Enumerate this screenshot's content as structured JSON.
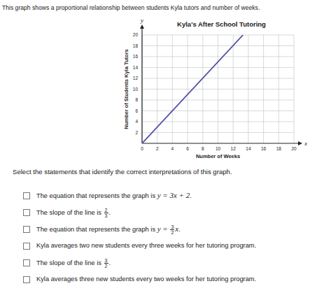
{
  "intro": "This graph shows a proportional relationship between students Kyla tutors and number of weeks.",
  "chart_data": {
    "type": "line",
    "title": "Kyla's After School Tutoring",
    "x_label": "Number of Weeks",
    "y_label": "Number of Students Kyla Tutors",
    "x_axis_name": "x",
    "y_axis_name": "y",
    "x": [
      0,
      13.3
    ],
    "values": [
      0,
      20
    ],
    "color": "#4b4fa6",
    "xlim": [
      0,
      20
    ],
    "ylim": [
      0,
      20
    ],
    "xticks": [
      0,
      2,
      4,
      6,
      8,
      10,
      12,
      14,
      16,
      18,
      20
    ],
    "yticks": [
      2,
      4,
      6,
      8,
      10,
      12,
      14,
      16,
      18,
      20
    ],
    "grid": true
  },
  "question": "Select the statements that identify the correct interpretations of this graph.",
  "options": [
    [
      {
        "t": "The equation that represents the graph is "
      },
      {
        "m": "y = 3x + 2"
      },
      {
        "t": "."
      }
    ],
    [
      {
        "t": "The slope of the line is "
      },
      {
        "f": [
          "2",
          "3"
        ]
      },
      {
        "t": "."
      }
    ],
    [
      {
        "t": "The equation that represents the graph is "
      },
      {
        "m": "y = "
      },
      {
        "f": [
          "3",
          "2"
        ]
      },
      {
        "m": "x"
      },
      {
        "t": "."
      }
    ],
    [
      {
        "t": "Kyla averages two new students every three weeks for her tutoring program."
      }
    ],
    [
      {
        "t": "The slope of the line is "
      },
      {
        "f": [
          "3",
          "2"
        ]
      },
      {
        "t": "."
      }
    ],
    [
      {
        "t": "Kyla averages three new students every two weeks for her tutoring program."
      }
    ]
  ]
}
